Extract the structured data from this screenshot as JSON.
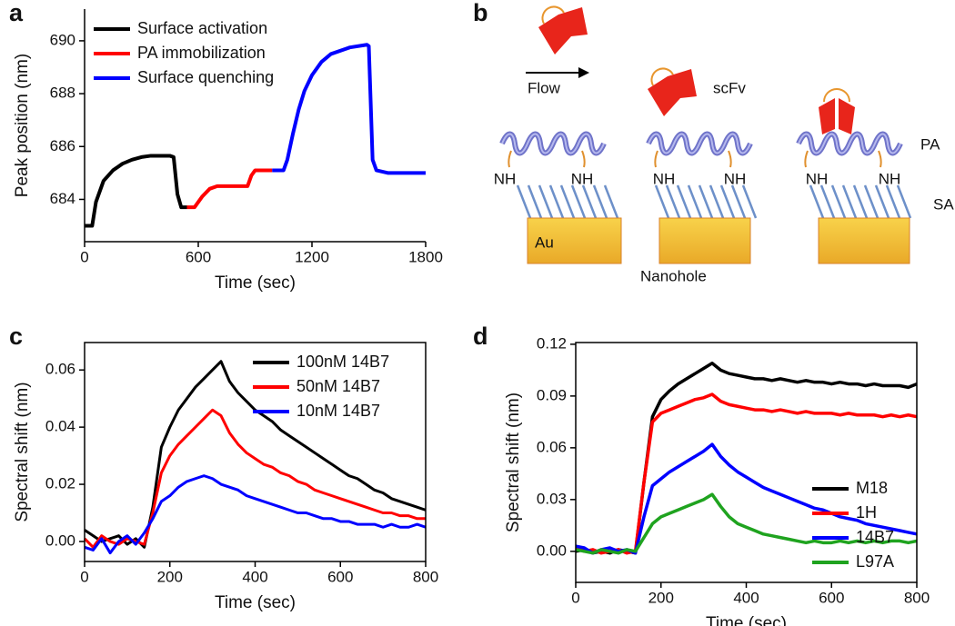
{
  "chart_data": [
    {
      "panel": "a",
      "type": "line",
      "xlabel": "Time (sec)",
      "ylabel": "Peak position (nm)",
      "xlim": [
        0,
        1800
      ],
      "ylim": [
        682.4,
        691.2
      ],
      "xticks": [
        0,
        600,
        1200,
        1800
      ],
      "yticks": [
        684,
        686,
        688,
        690
      ],
      "box": false,
      "legend": "upper left",
      "line_width": 4,
      "series": [
        {
          "name": "Surface activation",
          "color": "#000000",
          "x": [
            0,
            40,
            60,
            100,
            150,
            200,
            250,
            300,
            350,
            450,
            470,
            490,
            510,
            540
          ],
          "values": [
            683,
            683,
            683.9,
            684.7,
            685.1,
            685.35,
            685.5,
            685.6,
            685.65,
            685.65,
            685.6,
            684.2,
            683.7,
            683.7
          ]
        },
        {
          "name": "PA immobilization",
          "color": "#ff0000",
          "x": [
            540,
            580,
            620,
            660,
            700,
            860,
            880,
            900,
            960,
            990
          ],
          "values": [
            683.7,
            683.7,
            684.1,
            684.4,
            684.5,
            684.5,
            684.9,
            685.1,
            685.1,
            685.1
          ]
        },
        {
          "name": "Surface quenching",
          "color": "#0000ff",
          "x": [
            990,
            1050,
            1070,
            1100,
            1130,
            1160,
            1200,
            1250,
            1300,
            1400,
            1490,
            1500,
            1520,
            1540,
            1600,
            1800
          ],
          "values": [
            685.1,
            685.1,
            685.5,
            686.5,
            687.4,
            688.1,
            688.7,
            689.2,
            689.5,
            689.75,
            689.85,
            689.8,
            685.5,
            685.1,
            685.0,
            685.0
          ]
        }
      ]
    },
    {
      "panel": "c",
      "type": "line",
      "xlabel": "Time (sec)",
      "ylabel": "Spectral shift (nm)",
      "xlim": [
        0,
        800
      ],
      "ylim": [
        -0.007,
        0.0696
      ],
      "xticks": [
        0,
        200,
        400,
        600,
        800
      ],
      "yticks": [
        {
          "value": 0,
          "label": "0.00"
        },
        {
          "value": 0.02,
          "label": "0.02"
        },
        {
          "value": 0.04,
          "label": "0.04"
        },
        {
          "value": 0.06,
          "label": "0.06"
        }
      ],
      "box": true,
      "legend": "upper right",
      "line_width": 3,
      "x": [
        0,
        20,
        40,
        60,
        80,
        100,
        120,
        140,
        160,
        180,
        200,
        220,
        240,
        260,
        280,
        300,
        320,
        340,
        360,
        380,
        400,
        420,
        440,
        460,
        480,
        500,
        520,
        540,
        560,
        580,
        600,
        620,
        640,
        660,
        680,
        700,
        720,
        740,
        760,
        780,
        800
      ],
      "series": [
        {
          "name": "100nM 14B7",
          "color": "#000000",
          "values": [
            0.004,
            0.002,
            0.0,
            0.001,
            0.002,
            -0.001,
            0.001,
            -0.002,
            0.012,
            0.033,
            0.04,
            0.046,
            0.05,
            0.054,
            0.057,
            0.06,
            0.063,
            0.056,
            0.052,
            0.049,
            0.046,
            0.044,
            0.042,
            0.039,
            0.037,
            0.035,
            0.033,
            0.031,
            0.029,
            0.027,
            0.025,
            0.023,
            0.022,
            0.02,
            0.018,
            0.017,
            0.015,
            0.014,
            0.013,
            0.012,
            0.011
          ]
        },
        {
          "name": "50nM 14B7",
          "color": "#ff0000",
          "values": [
            0.001,
            -0.002,
            0.002,
            0.0,
            -0.001,
            0.001,
            0.0,
            -0.001,
            0.01,
            0.024,
            0.03,
            0.034,
            0.037,
            0.04,
            0.043,
            0.046,
            0.044,
            0.038,
            0.034,
            0.031,
            0.029,
            0.027,
            0.026,
            0.024,
            0.023,
            0.021,
            0.02,
            0.018,
            0.017,
            0.016,
            0.015,
            0.014,
            0.013,
            0.012,
            0.011,
            0.01,
            0.01,
            0.009,
            0.009,
            0.008,
            0.008
          ]
        },
        {
          "name": "10nM 14B7",
          "color": "#0000ff",
          "values": [
            -0.002,
            -0.003,
            0.001,
            -0.004,
            0.0,
            0.002,
            -0.001,
            0.003,
            0.008,
            0.014,
            0.016,
            0.019,
            0.021,
            0.022,
            0.023,
            0.022,
            0.02,
            0.019,
            0.018,
            0.016,
            0.015,
            0.014,
            0.013,
            0.012,
            0.011,
            0.01,
            0.01,
            0.009,
            0.008,
            0.008,
            0.007,
            0.007,
            0.006,
            0.006,
            0.006,
            0.005,
            0.006,
            0.005,
            0.005,
            0.006,
            0.005
          ]
        }
      ]
    },
    {
      "panel": "d",
      "type": "line",
      "xlabel": "Time (sec)",
      "ylabel": "Spectral shift (nm)",
      "xlim": [
        0,
        800
      ],
      "ylim": [
        -0.018,
        0.121
      ],
      "xticks": [
        0,
        200,
        400,
        600,
        800
      ],
      "yticks": [
        {
          "value": 0,
          "label": "0.00"
        },
        {
          "value": 0.03,
          "label": "0.03"
        },
        {
          "value": 0.06,
          "label": "0.06"
        },
        {
          "value": 0.09,
          "label": "0.09"
        },
        {
          "value": 0.12,
          "label": "0.12"
        }
      ],
      "box": true,
      "legend": "lower right",
      "line_width": 3.5,
      "x": [
        0,
        20,
        40,
        60,
        80,
        100,
        120,
        140,
        160,
        180,
        200,
        220,
        240,
        260,
        280,
        300,
        320,
        340,
        360,
        380,
        400,
        420,
        440,
        460,
        480,
        500,
        520,
        540,
        560,
        580,
        600,
        620,
        640,
        660,
        680,
        700,
        720,
        740,
        760,
        780,
        800
      ],
      "series": [
        {
          "name": "M18",
          "color": "#000000",
          "values": [
            0,
            0.001,
            -0.001,
            0.0,
            -0.001,
            0.001,
            0.0,
            -0.001,
            0.04,
            0.078,
            0.088,
            0.093,
            0.097,
            0.1,
            0.103,
            0.106,
            0.109,
            0.105,
            0.103,
            0.102,
            0.101,
            0.1,
            0.1,
            0.099,
            0.1,
            0.099,
            0.098,
            0.099,
            0.098,
            0.098,
            0.097,
            0.098,
            0.097,
            0.097,
            0.096,
            0.097,
            0.096,
            0.096,
            0.096,
            0.095,
            0.097
          ]
        },
        {
          "name": "1H",
          "color": "#ff0000",
          "values": [
            0.002,
            0.0,
            0.001,
            -0.001,
            0.0,
            0.001,
            -0.001,
            0.0,
            0.04,
            0.075,
            0.08,
            0.082,
            0.084,
            0.086,
            0.088,
            0.089,
            0.091,
            0.087,
            0.085,
            0.084,
            0.083,
            0.082,
            0.082,
            0.081,
            0.082,
            0.081,
            0.08,
            0.081,
            0.08,
            0.08,
            0.08,
            0.079,
            0.08,
            0.079,
            0.079,
            0.079,
            0.078,
            0.079,
            0.078,
            0.079,
            0.078
          ]
        },
        {
          "name": "14B7",
          "color": "#0000ff",
          "values": [
            0.003,
            0.002,
            -0.001,
            0.001,
            0.002,
            0.0,
            0.001,
            -0.001,
            0.02,
            0.038,
            0.042,
            0.046,
            0.049,
            0.052,
            0.055,
            0.058,
            0.062,
            0.055,
            0.05,
            0.046,
            0.043,
            0.04,
            0.037,
            0.035,
            0.033,
            0.031,
            0.029,
            0.027,
            0.025,
            0.024,
            0.022,
            0.02,
            0.019,
            0.018,
            0.016,
            0.015,
            0.014,
            0.013,
            0.012,
            0.011,
            0.01
          ]
        },
        {
          "name": "L97A",
          "color": "#1fa31f",
          "values": [
            0.001,
            0.0,
            -0.001,
            0.001,
            0.0,
            -0.001,
            0.001,
            0.0,
            0.008,
            0.016,
            0.02,
            0.022,
            0.024,
            0.026,
            0.028,
            0.03,
            0.033,
            0.026,
            0.02,
            0.016,
            0.014,
            0.012,
            0.01,
            0.009,
            0.008,
            0.007,
            0.006,
            0.005,
            0.006,
            0.005,
            0.005,
            0.006,
            0.005,
            0.006,
            0.005,
            0.006,
            0.005,
            0.006,
            0.006,
            0.005,
            0.006
          ]
        }
      ]
    }
  ],
  "diagram": {
    "panel": "b",
    "flow": "Flow",
    "scfv": "scFv",
    "pa": "PA",
    "sam": "SAM",
    "nh": [
      "NH",
      "NH",
      "NH",
      "NH",
      "NH",
      "NH"
    ],
    "au": "Au",
    "nanohole": "Nanohole"
  }
}
